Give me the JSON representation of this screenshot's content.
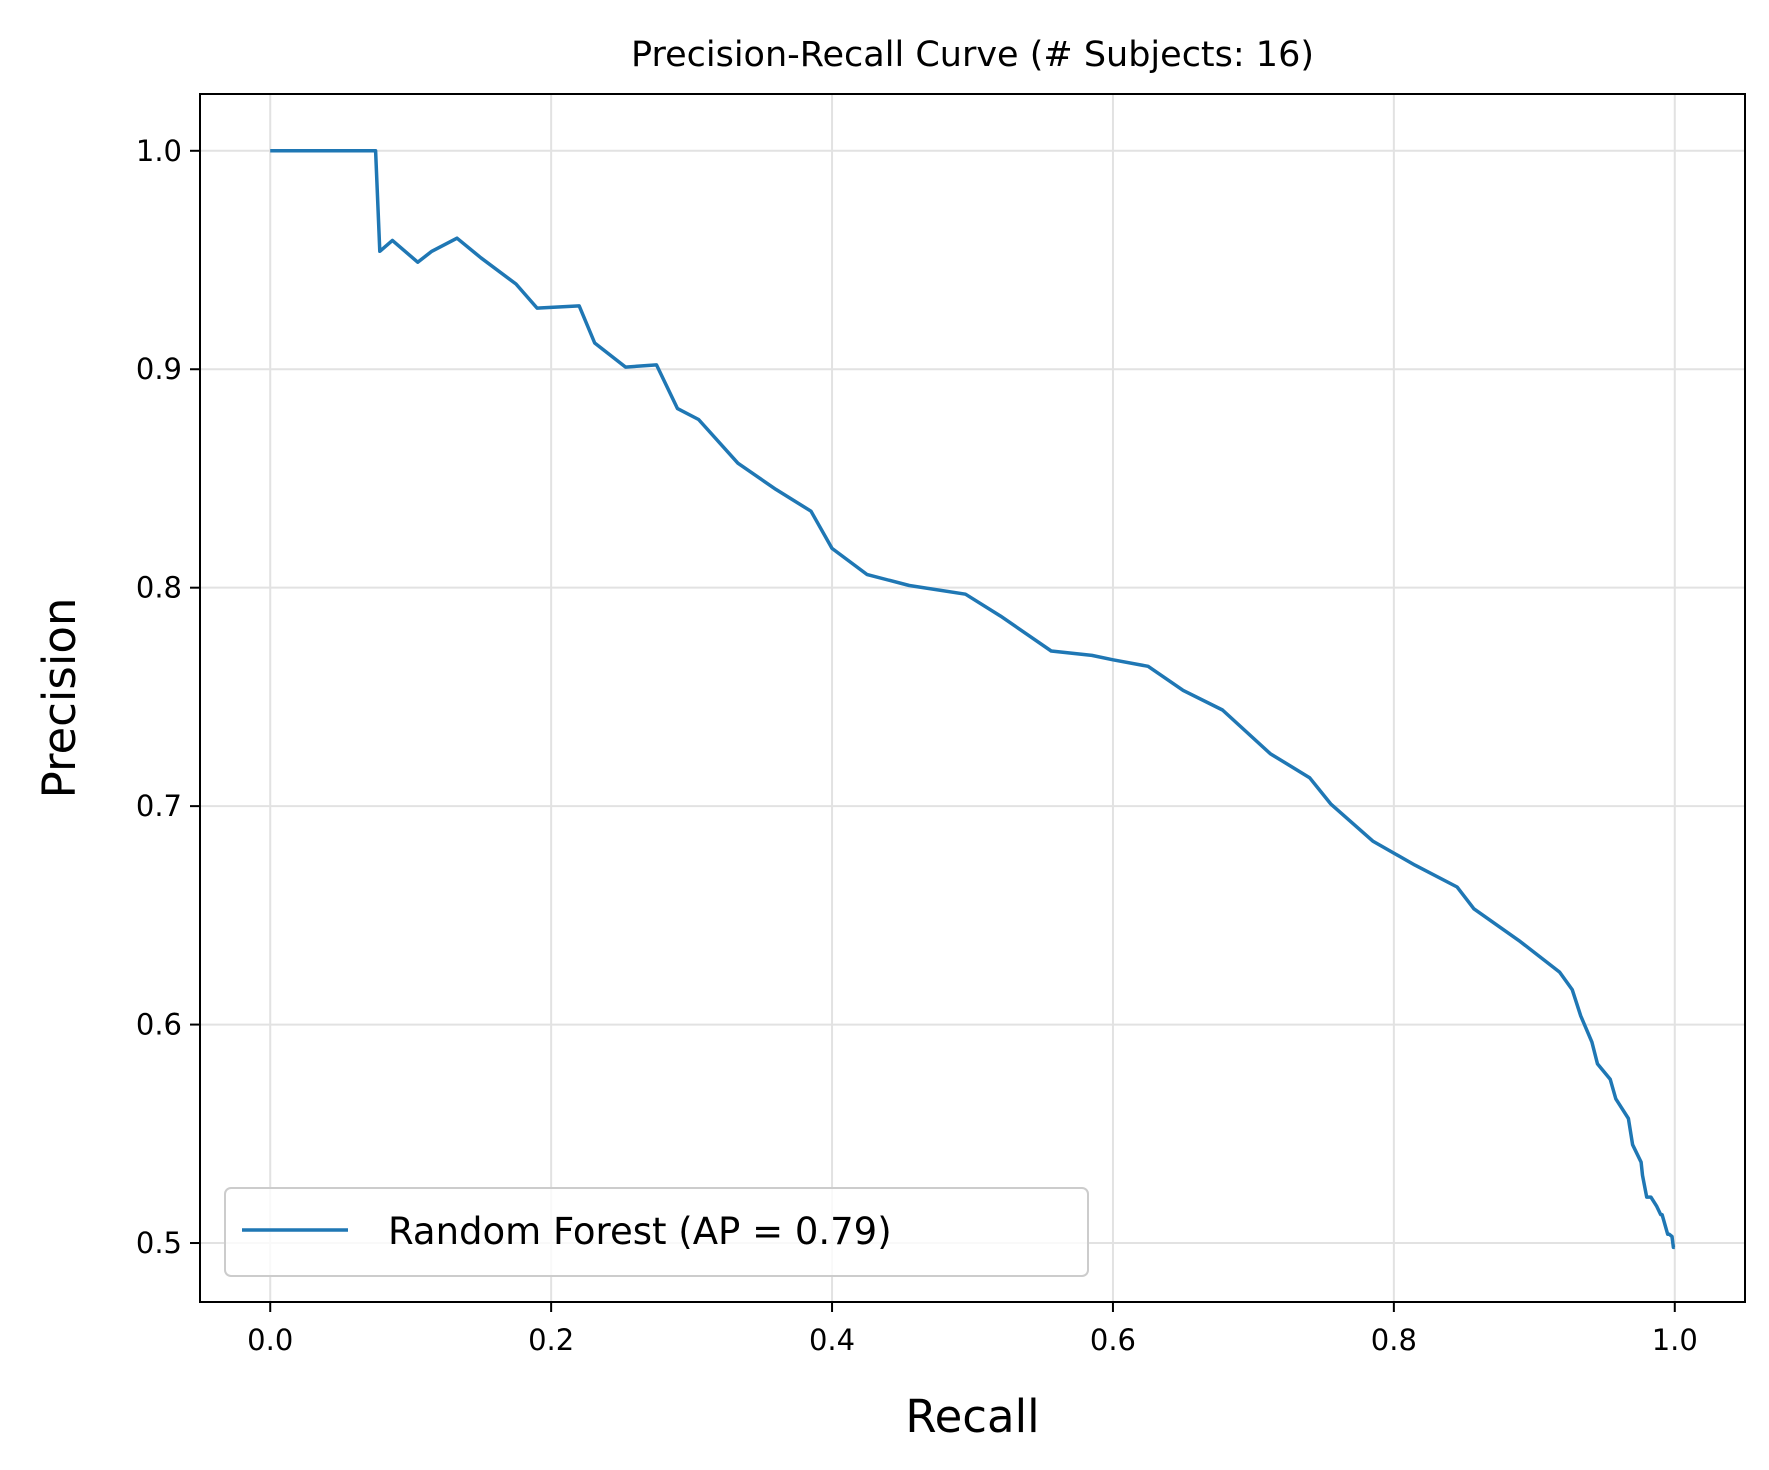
{
  "chart_data": {
    "type": "line",
    "title": "Precision-Recall Curve (# Subjects: 16)",
    "xlabel": "Recall",
    "ylabel": "Precision",
    "xlim": [
      -0.05,
      1.05
    ],
    "ylim": [
      0.473,
      1.026
    ],
    "xticks": [
      0.0,
      0.2,
      0.4,
      0.6,
      0.8,
      1.0
    ],
    "xtick_labels": [
      "0.0",
      "0.2",
      "0.4",
      "0.6",
      "0.8",
      "1.0"
    ],
    "yticks": [
      0.5,
      0.6,
      0.7,
      0.8,
      0.9,
      1.0
    ],
    "ytick_labels": [
      "0.5",
      "0.6",
      "0.7",
      "0.8",
      "0.9",
      "1.0"
    ],
    "grid": true,
    "legend_position": "lower-left",
    "series": [
      {
        "name": "Random Forest (AP = 0.79)",
        "color": "#1f77b4",
        "x": [
          0.0,
          0.075,
          0.078,
          0.087,
          0.105,
          0.115,
          0.133,
          0.15,
          0.175,
          0.19,
          0.22,
          0.231,
          0.253,
          0.275,
          0.29,
          0.305,
          0.333,
          0.36,
          0.385,
          0.4,
          0.425,
          0.455,
          0.495,
          0.52,
          0.556,
          0.585,
          0.6,
          0.625,
          0.65,
          0.678,
          0.712,
          0.74,
          0.755,
          0.785,
          0.815,
          0.845,
          0.857,
          0.89,
          0.918,
          0.927,
          0.933,
          0.941,
          0.945,
          0.954,
          0.958,
          0.962,
          0.967,
          0.97,
          0.976,
          0.977,
          0.98,
          0.983,
          0.987,
          0.99,
          0.991,
          0.995,
          0.996,
          0.998,
          0.999,
          1.0
        ],
        "y": [
          1.0,
          1.0,
          0.954,
          0.959,
          0.949,
          0.954,
          0.96,
          0.951,
          0.939,
          0.928,
          0.929,
          0.912,
          0.901,
          0.902,
          0.882,
          0.877,
          0.857,
          0.845,
          0.835,
          0.818,
          0.806,
          0.801,
          0.797,
          0.787,
          0.771,
          0.769,
          0.767,
          0.764,
          0.753,
          0.744,
          0.724,
          0.713,
          0.701,
          0.684,
          0.673,
          0.663,
          0.653,
          0.638,
          0.624,
          0.616,
          0.604,
          0.592,
          0.582,
          0.575,
          0.566,
          0.562,
          0.557,
          0.545,
          0.537,
          0.531,
          0.521,
          0.521,
          0.517,
          0.513,
          0.513,
          0.504,
          0.504,
          0.503,
          0.498,
          0.498
        ]
      }
    ]
  }
}
